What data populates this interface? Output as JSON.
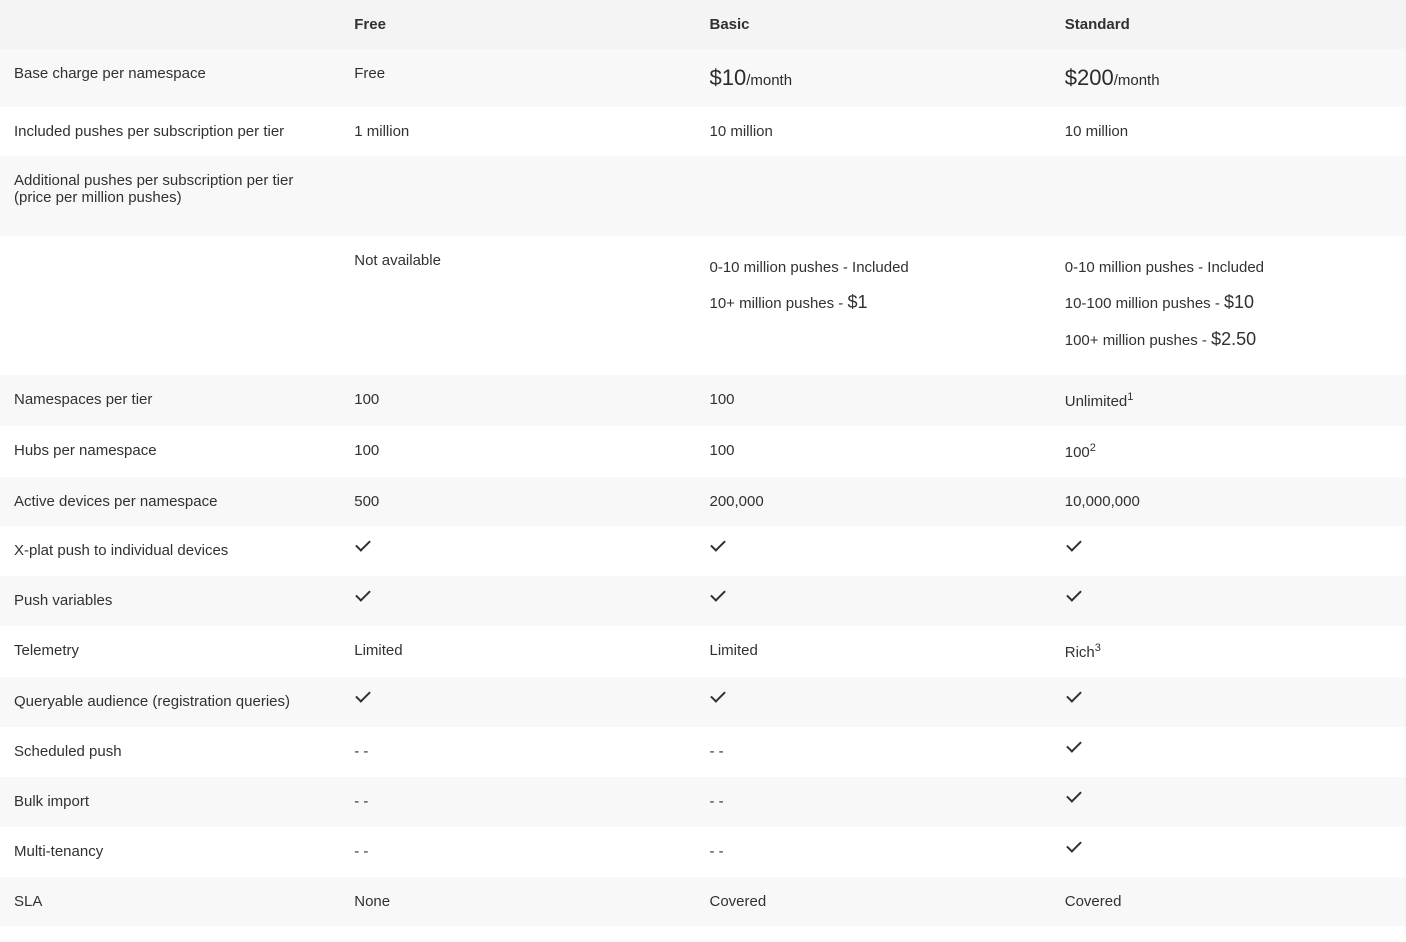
{
  "columns": {
    "label": "",
    "free": "Free",
    "basic": "Basic",
    "standard": "Standard"
  },
  "rows": {
    "baseCharge": {
      "label": "Base charge per namespace",
      "free": "Free",
      "basic": {
        "price": "$10",
        "unit": "/month"
      },
      "standard": {
        "price": "$200",
        "unit": "/month"
      }
    },
    "includedPushes": {
      "label": "Included pushes per subscription per tier",
      "free": "1 million",
      "basic": "10 million",
      "standard": "10 million"
    },
    "additionalHeader": {
      "label": "Additional pushes per subscription per tier (price per million pushes)"
    },
    "additionalDetail": {
      "free": "Not available",
      "basic": [
        {
          "text": "0-10 million pushes - Included"
        },
        {
          "text": "10+ million pushes - ",
          "price": "$1"
        }
      ],
      "standard": [
        {
          "text": "0-10 million pushes - Included"
        },
        {
          "text": "10-100 million pushes - ",
          "price": "$10"
        },
        {
          "text": "100+ million pushes - ",
          "price": "$2.50"
        }
      ]
    },
    "namespaces": {
      "label": "Namespaces per tier",
      "free": "100",
      "basic": "100",
      "standard": {
        "text": "Unlimited",
        "sup": "1"
      }
    },
    "hubs": {
      "label": "Hubs per namespace",
      "free": "100",
      "basic": "100",
      "standard": {
        "text": "100",
        "sup": "2"
      }
    },
    "activeDevices": {
      "label": "Active devices per namespace",
      "free": "500",
      "basic": "200,000",
      "standard": "10,000,000"
    },
    "xplat": {
      "label": "X-plat push to individual devices",
      "free": "check",
      "basic": "check",
      "standard": "check"
    },
    "pushVars": {
      "label": "Push variables",
      "free": "check",
      "basic": "check",
      "standard": "check"
    },
    "telemetry": {
      "label": "Telemetry",
      "free": "Limited",
      "basic": "Limited",
      "standard": {
        "text": "Rich",
        "sup": "3"
      }
    },
    "queryable": {
      "label": "Queryable audience (registration queries)",
      "free": "check",
      "basic": "check",
      "standard": "check"
    },
    "scheduled": {
      "label": "Scheduled push",
      "free": "- -",
      "basic": "- -",
      "standard": "check"
    },
    "bulkImport": {
      "label": "Bulk import",
      "free": "- -",
      "basic": "- -",
      "standard": "check"
    },
    "multiTenancy": {
      "label": "Multi-tenancy",
      "free": "- -",
      "basic": "- -",
      "standard": "check"
    },
    "sla": {
      "label": "SLA",
      "free": "None",
      "basic": "Covered",
      "standard": "Covered"
    }
  }
}
